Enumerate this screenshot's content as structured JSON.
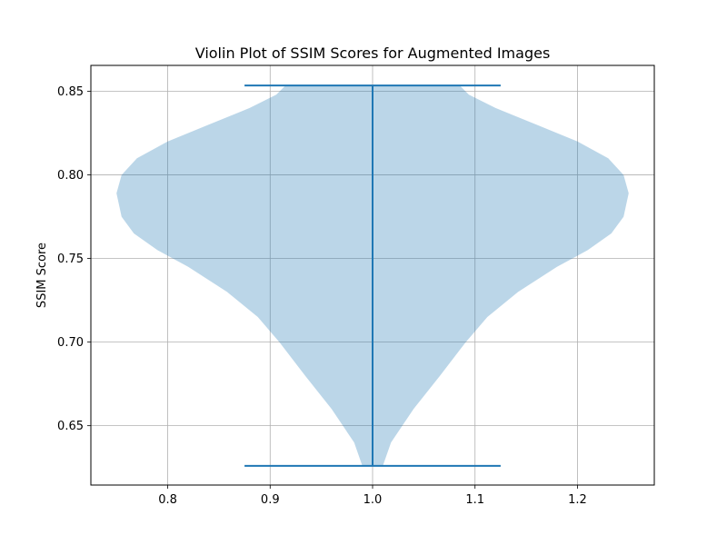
{
  "chart_data": {
    "type": "violin",
    "title": "Violin Plot of SSIM Scores for Augmented Images",
    "xlabel": "",
    "ylabel": "SSIM Score",
    "xlim": [
      0.725,
      1.275
    ],
    "ylim": [
      0.6145,
      0.8655
    ],
    "xticks": [
      0.8,
      0.9,
      1.0,
      1.1,
      1.2
    ],
    "xtick_labels": [
      "0.8",
      "0.9",
      "1.0",
      "1.1",
      "1.2"
    ],
    "yticks": [
      0.65,
      0.7,
      0.75,
      0.8,
      0.85
    ],
    "ytick_labels": [
      "0.65",
      "0.70",
      "0.75",
      "0.80",
      "0.85"
    ],
    "grid": true,
    "violin": {
      "position": 1.0,
      "min": 0.626,
      "max": 0.8535,
      "cap_half_width": 0.125,
      "density_profile": [
        {
          "y": 0.626,
          "half_width": 0.01
        },
        {
          "y": 0.64,
          "half_width": 0.018
        },
        {
          "y": 0.66,
          "half_width": 0.04
        },
        {
          "y": 0.68,
          "half_width": 0.066
        },
        {
          "y": 0.7,
          "half_width": 0.091
        },
        {
          "y": 0.715,
          "half_width": 0.112
        },
        {
          "y": 0.73,
          "half_width": 0.142
        },
        {
          "y": 0.745,
          "half_width": 0.18
        },
        {
          "y": 0.755,
          "half_width": 0.21
        },
        {
          "y": 0.765,
          "half_width": 0.233
        },
        {
          "y": 0.775,
          "half_width": 0.245
        },
        {
          "y": 0.789,
          "half_width": 0.25
        },
        {
          "y": 0.8,
          "half_width": 0.245
        },
        {
          "y": 0.81,
          "half_width": 0.23
        },
        {
          "y": 0.82,
          "half_width": 0.2
        },
        {
          "y": 0.83,
          "half_width": 0.16
        },
        {
          "y": 0.84,
          "half_width": 0.12
        },
        {
          "y": 0.848,
          "half_width": 0.094
        },
        {
          "y": 0.8535,
          "half_width": 0.085
        }
      ]
    },
    "colors": {
      "body": "#1f77b4",
      "body_opacity": 0.3,
      "lines": "#1f77b4",
      "grid": "#b0b0b0"
    }
  }
}
